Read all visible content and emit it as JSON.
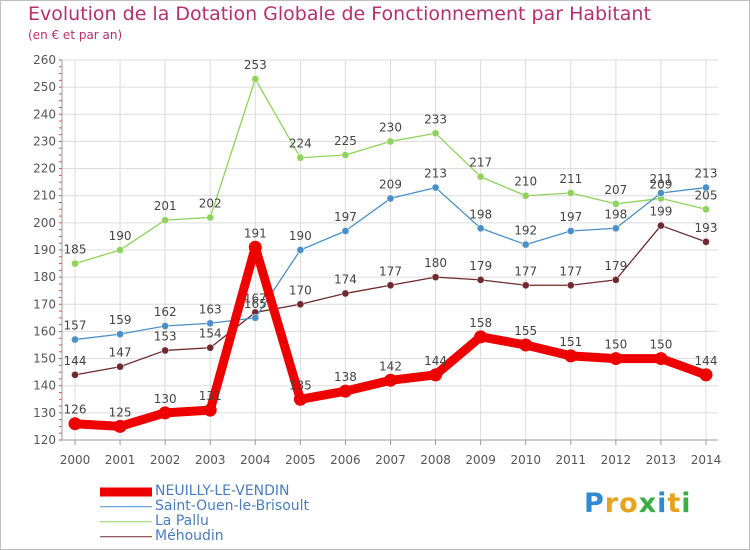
{
  "title": "Evolution de la Dotation Globale de Fonctionnement par Habitant",
  "subtitle": "(en € et par an)",
  "logo": {
    "letters": [
      "P",
      "r",
      "o",
      "x",
      "i",
      "t",
      "i"
    ],
    "colors": [
      "#2f8ad0",
      "#e9a21e",
      "#e9a21e",
      "#3cae45",
      "#2f8ad0",
      "#e9a21e",
      "#3cae45"
    ]
  },
  "colors": {
    "title": "#b5306e",
    "axis_text": "#555555",
    "grid": "#dcdcdc",
    "label": "#444444"
  },
  "chart_data": {
    "type": "line",
    "title": "Evolution de la Dotation Globale de Fonctionnement par Habitant",
    "subtitle": "(en € et par an)",
    "xlabel": "",
    "ylabel": "",
    "ylim": [
      120,
      260
    ],
    "yticks": [
      120,
      130,
      140,
      150,
      160,
      170,
      180,
      190,
      200,
      210,
      220,
      230,
      240,
      250,
      260
    ],
    "x": [
      "2000",
      "2001",
      "2002",
      "2003",
      "2004",
      "2005",
      "2006",
      "2007",
      "2008",
      "2009",
      "2010",
      "2011",
      "2012",
      "2013",
      "2014"
    ],
    "grid": true,
    "legend_position": "bottom-left",
    "series": [
      {
        "name": "Méhoudin",
        "color": "#6e2a2e",
        "values": [
          144,
          147,
          153,
          154,
          167,
          170,
          174,
          177,
          180,
          179,
          177,
          177,
          179,
          199,
          193
        ],
        "labels": [
          "144",
          "147",
          "153",
          "154",
          "167",
          "170",
          "174",
          "177",
          "180",
          "179",
          "177",
          "177",
          "179",
          "199",
          "193"
        ]
      },
      {
        "name": "La Pallu",
        "color": "#8fd25c",
        "values": [
          185,
          190,
          201,
          202,
          253,
          224,
          225,
          230,
          233,
          217,
          210,
          211,
          207,
          209,
          205
        ],
        "labels": [
          "185",
          "190",
          "201",
          "202",
          "253",
          "224",
          "225",
          "230",
          "233",
          "217",
          "210",
          "211",
          "207",
          "209",
          "205"
        ]
      },
      {
        "name": "Saint-Ouen-le-Brisoult",
        "color": "#4a90c8",
        "values": [
          157,
          159,
          162,
          163,
          165,
          190,
          197,
          209,
          213,
          198,
          192,
          197,
          198,
          211,
          213
        ],
        "labels": [
          "157",
          "159",
          "162",
          "163",
          "165",
          "190",
          "197",
          "209",
          "213",
          "198",
          "192",
          "197",
          "198",
          "211",
          "213"
        ]
      },
      {
        "name": "NEUILLY-LE-VENDIN",
        "color": "#ee0000",
        "values": [
          126,
          125,
          130,
          131,
          191,
          135,
          138,
          142,
          144,
          158,
          155,
          151,
          150,
          150,
          144
        ],
        "labels": [
          "126",
          "125",
          "130",
          "131",
          "191",
          "135",
          "138",
          "142",
          "144",
          "158",
          "155",
          "151",
          "150",
          "150",
          "144"
        ]
      }
    ],
    "legend": [
      "NEUILLY-LE-VENDIN",
      "Saint-Ouen-le-Brisoult",
      "La Pallu",
      "Méhoudin"
    ]
  }
}
